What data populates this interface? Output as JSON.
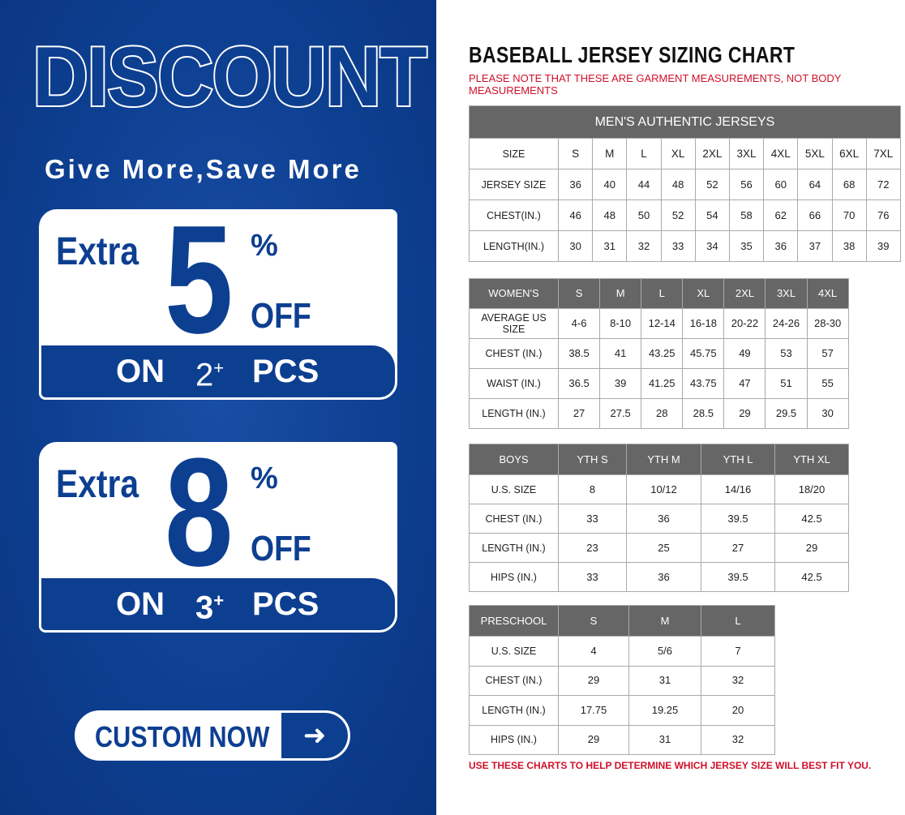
{
  "promo": {
    "headline": "DISCOUNT",
    "tagline": "Give More,Save More",
    "offers": [
      {
        "extra": "Extra",
        "value": "5",
        "percent": "%",
        "off": "OFF",
        "on": "ON",
        "qty": "2",
        "plus": "+",
        "pcs": "PCS"
      },
      {
        "extra": "Extra",
        "value": "8",
        "percent": "%",
        "off": "OFF",
        "on": "ON",
        "qty": "3",
        "plus": "+",
        "pcs": "PCS"
      }
    ],
    "button_label": "CUSTOM NOW",
    "button_icon": "arrow-right-icon",
    "accent": "#0d3f91"
  },
  "chart": {
    "title": "BASEBALL JERSEY SIZING CHART",
    "note": "PLEASE NOTE THAT THESE ARE GARMENT MEASUREMENTS, NOT BODY MEASUREMENTS",
    "footer": "USE THESE CHARTS TO HELP DETERMINE WHICH JERSEY SIZE WILL BEST FIT YOU.",
    "note_color": "#d0102a",
    "tables": [
      {
        "caption": "MEN'S AUTHENTIC JERSEYS",
        "header": [
          "SIZE",
          "S",
          "M",
          "L",
          "XL",
          "2XL",
          "3XL",
          "4XL",
          "5XL",
          "6XL",
          "7XL"
        ],
        "rows": [
          [
            "JERSEY SIZE",
            "36",
            "40",
            "44",
            "48",
            "52",
            "56",
            "60",
            "64",
            "68",
            "72"
          ],
          [
            "CHEST(IN.)",
            "46",
            "48",
            "50",
            "52",
            "54",
            "58",
            "62",
            "66",
            "70",
            "76"
          ],
          [
            "LENGTH(IN.)",
            "30",
            "31",
            "32",
            "33",
            "34",
            "35",
            "36",
            "37",
            "38",
            "39"
          ]
        ]
      },
      {
        "header": [
          "WOMEN'S",
          "S",
          "M",
          "L",
          "XL",
          "2XL",
          "3XL",
          "4XL"
        ],
        "rows": [
          [
            "AVERAGE US SIZE",
            "4-6",
            "8-10",
            "12-14",
            "16-18",
            "20-22",
            "24-26",
            "28-30"
          ],
          [
            "CHEST (IN.)",
            "38.5",
            "41",
            "43.25",
            "45.75",
            "49",
            "53",
            "57"
          ],
          [
            "WAIST (IN.)",
            "36.5",
            "39",
            "41.25",
            "43.75",
            "47",
            "51",
            "55"
          ],
          [
            "LENGTH (IN.)",
            "27",
            "27.5",
            "28",
            "28.5",
            "29",
            "29.5",
            "30"
          ]
        ]
      },
      {
        "header": [
          "BOYS",
          "YTH S",
          "YTH M",
          "YTH L",
          "YTH XL"
        ],
        "rows": [
          [
            "U.S. SIZE",
            "8",
            "10/12",
            "14/16",
            "18/20"
          ],
          [
            "CHEST (IN.)",
            "33",
            "36",
            "39.5",
            "42.5"
          ],
          [
            "LENGTH (IN.)",
            "23",
            "25",
            "27",
            "29"
          ],
          [
            "HIPS (IN.)",
            "33",
            "36",
            "39.5",
            "42.5"
          ]
        ]
      },
      {
        "header": [
          "PRESCHOOL",
          "S",
          "M",
          "L"
        ],
        "rows": [
          [
            "U.S. SIZE",
            "4",
            "5/6",
            "7"
          ],
          [
            "CHEST (IN.)",
            "29",
            "31",
            "32"
          ],
          [
            "LENGTH (IN.)",
            "17.75",
            "19.25",
            "20"
          ],
          [
            "HIPS (IN.)",
            "29",
            "31",
            "32"
          ]
        ]
      }
    ]
  }
}
